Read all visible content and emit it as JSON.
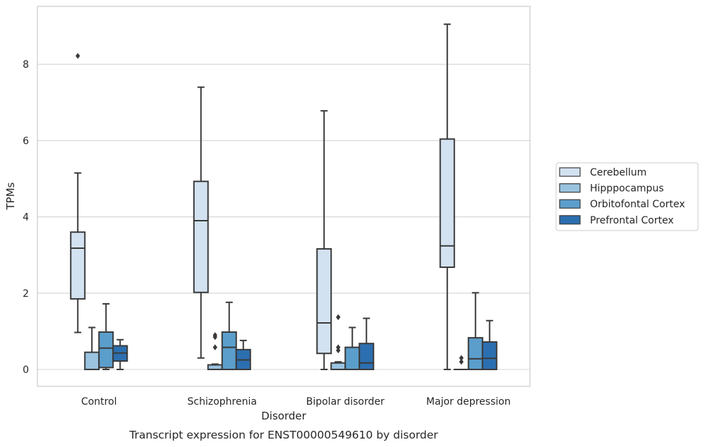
{
  "chart_data": {
    "type": "box",
    "title": "",
    "caption": "Transcript expression for ENST00000549610 by disorder",
    "xlabel": "Disorder",
    "ylabel": "TPMs",
    "ylim": [
      -0.4,
      9.5
    ],
    "yticks": [
      "0",
      "2",
      "4",
      "6",
      "8"
    ],
    "grid": "horizontal",
    "legend_position": "right",
    "categories": [
      "Control",
      "Schizophrenia",
      "Bipolar disorder",
      "Major depression"
    ],
    "series": [
      {
        "name": "Cerebellum",
        "color": "#d3e2f1",
        "boxes": [
          {
            "whislo": 0.97,
            "q1": 1.85,
            "med": 3.18,
            "q3": 3.6,
            "whishi": 5.15,
            "fliers": [
              8.22
            ]
          },
          {
            "whislo": 0.3,
            "q1": 2.02,
            "med": 3.9,
            "q3": 4.93,
            "whishi": 7.4,
            "fliers": []
          },
          {
            "whislo": 0.0,
            "q1": 0.42,
            "med": 1.22,
            "q3": 3.16,
            "whishi": 6.78,
            "fliers": []
          },
          {
            "whislo": 0.0,
            "q1": 2.68,
            "med": 3.24,
            "q3": 6.04,
            "whishi": 9.05,
            "fliers": []
          }
        ]
      },
      {
        "name": "Hipppocampus",
        "color": "#9ac3e0",
        "boxes": [
          {
            "whislo": 0.0,
            "q1": 0.0,
            "med": 0.0,
            "q3": 0.45,
            "whishi": 1.1,
            "fliers": []
          },
          {
            "whislo": 0.0,
            "q1": 0.0,
            "med": 0.0,
            "q3": 0.12,
            "whishi": 0.14,
            "fliers": [
              0.58,
              0.85,
              0.9
            ]
          },
          {
            "whislo": 0.0,
            "q1": 0.0,
            "med": 0.0,
            "q3": 0.17,
            "whishi": 0.2,
            "fliers": [
              0.5,
              0.58,
              1.37
            ]
          },
          {
            "whislo": 0.0,
            "q1": 0.0,
            "med": 0.0,
            "q3": 0.0,
            "whishi": 0.0,
            "fliers": [
              0.2,
              0.3
            ]
          }
        ]
      },
      {
        "name": "Orbitofontal Cortex",
        "color": "#5b9ecc",
        "boxes": [
          {
            "whislo": 0.0,
            "q1": 0.05,
            "med": 0.56,
            "q3": 0.98,
            "whishi": 1.72,
            "fliers": []
          },
          {
            "whislo": 0.0,
            "q1": 0.0,
            "med": 0.58,
            "q3": 0.98,
            "whishi": 1.76,
            "fliers": []
          },
          {
            "whislo": 0.0,
            "q1": 0.0,
            "med": 0.0,
            "q3": 0.58,
            "whishi": 1.1,
            "fliers": []
          },
          {
            "whislo": 0.0,
            "q1": 0.0,
            "med": 0.28,
            "q3": 0.83,
            "whishi": 2.01,
            "fliers": []
          }
        ]
      },
      {
        "name": "Prefrontal Cortex",
        "color": "#2c6fb0",
        "boxes": [
          {
            "whislo": 0.0,
            "q1": 0.22,
            "med": 0.43,
            "q3": 0.62,
            "whishi": 0.78,
            "fliers": []
          },
          {
            "whislo": 0.0,
            "q1": 0.0,
            "med": 0.25,
            "q3": 0.52,
            "whishi": 0.76,
            "fliers": []
          },
          {
            "whislo": 0.0,
            "q1": 0.0,
            "med": 0.17,
            "q3": 0.68,
            "whishi": 1.34,
            "fliers": []
          },
          {
            "whislo": 0.0,
            "q1": 0.0,
            "med": 0.29,
            "q3": 0.72,
            "whishi": 1.28,
            "fliers": []
          }
        ]
      }
    ]
  }
}
